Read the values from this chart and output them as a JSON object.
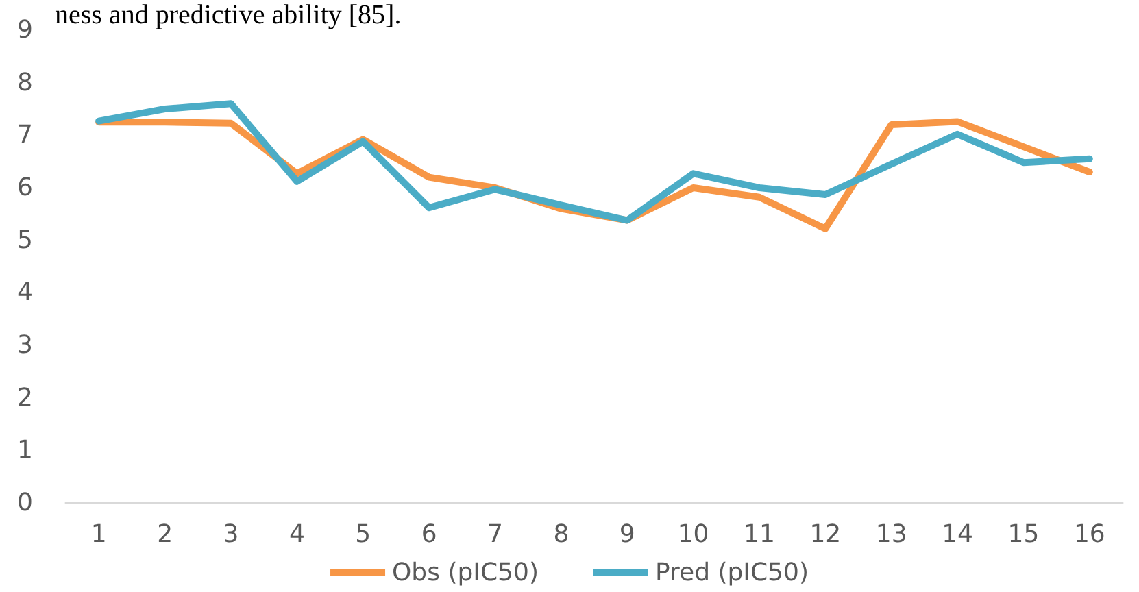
{
  "chart_data": {
    "type": "line",
    "annotations": [
      "ness and predictive ability [85]."
    ],
    "categories": [
      "1",
      "2",
      "3",
      "4",
      "5",
      "6",
      "7",
      "8",
      "9",
      "10",
      "11",
      "12",
      "13",
      "14",
      "15",
      "16"
    ],
    "series": [
      {
        "name": "Obs (pIC50)",
        "color": "#f79646",
        "values": [
          7.25,
          7.25,
          7.23,
          6.27,
          6.92,
          6.2,
          6.0,
          5.6,
          5.38,
          6.0,
          5.82,
          5.22,
          7.2,
          7.26,
          6.78,
          6.3
        ]
      },
      {
        "name": "Pred (pIC50)",
        "color": "#4bacc6",
        "values": [
          7.27,
          7.5,
          7.6,
          6.12,
          6.88,
          5.62,
          5.97,
          5.67,
          5.38,
          6.27,
          6.0,
          5.87,
          6.45,
          7.02,
          6.48,
          6.55
        ]
      }
    ],
    "ylim": [
      0,
      9
    ],
    "yticks": [
      0,
      1,
      2,
      3,
      4,
      5,
      6,
      7,
      8,
      9
    ],
    "grid": false,
    "legend": "bottom",
    "marker": "none",
    "line_style": "solid"
  }
}
